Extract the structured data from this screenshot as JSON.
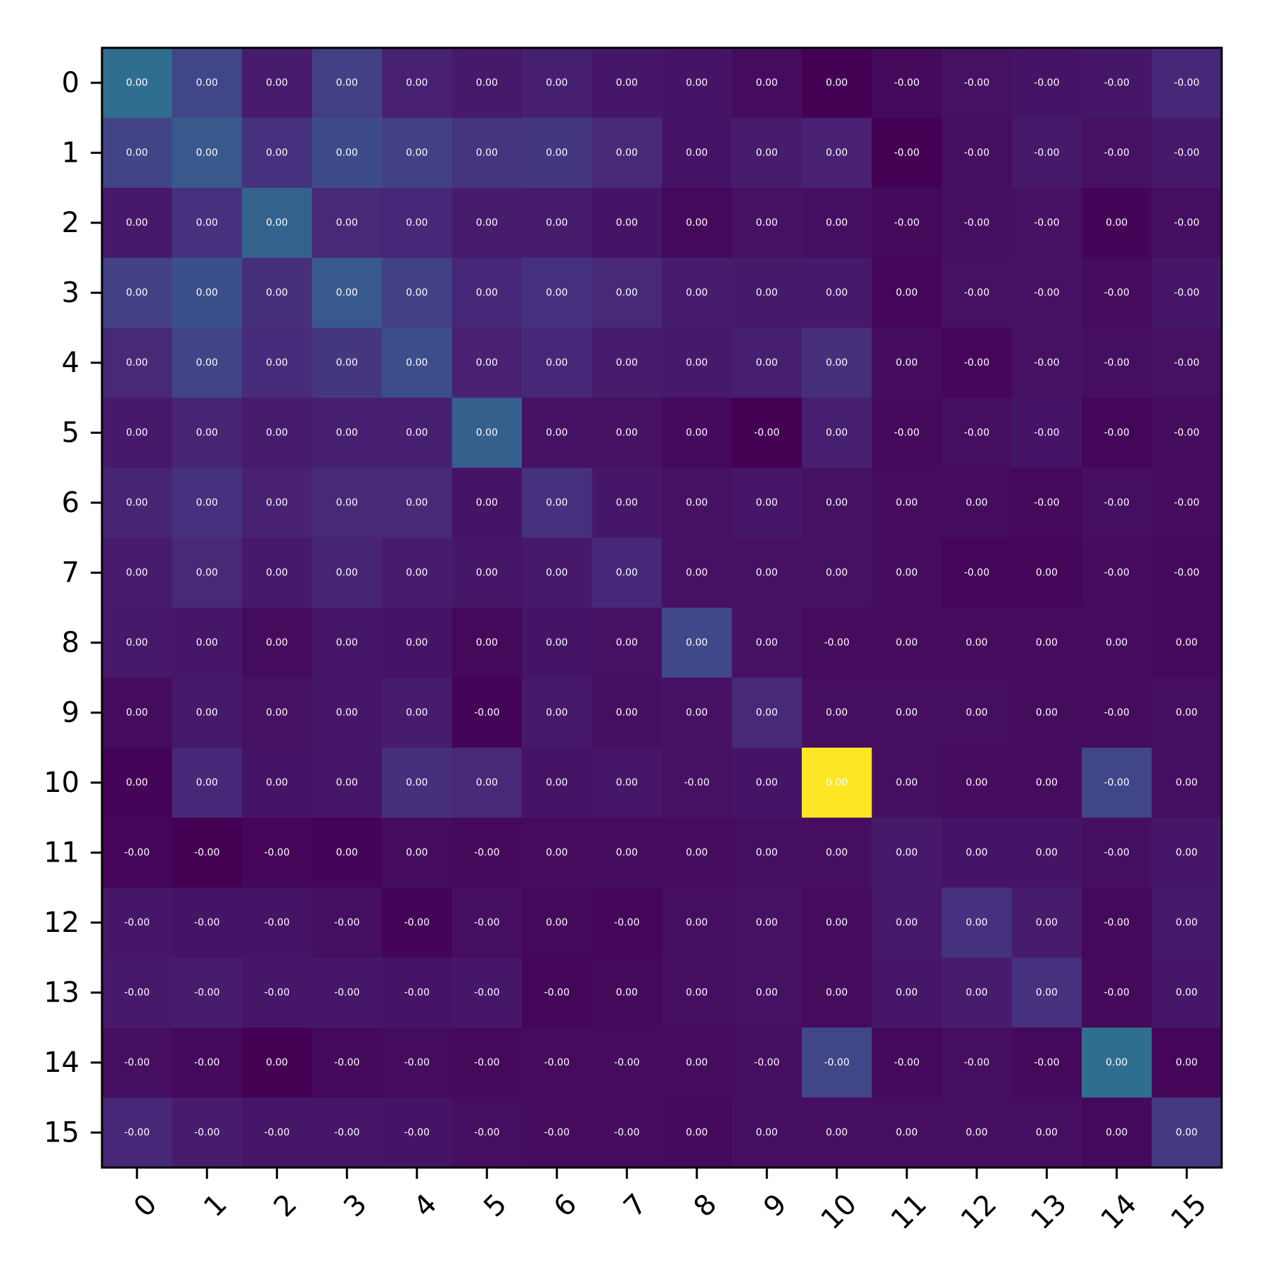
{
  "chart_data": {
    "type": "heatmap",
    "title": "",
    "xlabel": "",
    "ylabel": "",
    "x_ticks": [
      "0",
      "1",
      "2",
      "3",
      "4",
      "5",
      "6",
      "7",
      "8",
      "9",
      "10",
      "11",
      "12",
      "13",
      "14",
      "15"
    ],
    "y_ticks": [
      "0",
      "1",
      "2",
      "3",
      "4",
      "5",
      "6",
      "7",
      "8",
      "9",
      "10",
      "11",
      "12",
      "13",
      "14",
      "15"
    ],
    "x_tick_rotation": "45deg",
    "colormap": "viridis",
    "colorbar": false,
    "grid": false,
    "intensity_note": "relative color intensity 0..1 (viridis)",
    "intensity": [
      [
        0.45,
        0.26,
        0.1,
        0.23,
        0.12,
        0.09,
        0.11,
        0.08,
        0.07,
        0.04,
        0.0,
        0.03,
        0.06,
        0.07,
        0.08,
        0.14
      ],
      [
        0.25,
        0.35,
        0.18,
        0.29,
        0.24,
        0.19,
        0.2,
        0.15,
        0.07,
        0.1,
        0.12,
        0.0,
        0.05,
        0.09,
        0.06,
        0.09
      ],
      [
        0.09,
        0.18,
        0.4,
        0.15,
        0.14,
        0.1,
        0.1,
        0.07,
        0.03,
        0.06,
        0.05,
        0.03,
        0.05,
        0.06,
        0.01,
        0.05
      ],
      [
        0.24,
        0.31,
        0.17,
        0.35,
        0.24,
        0.14,
        0.18,
        0.15,
        0.1,
        0.09,
        0.09,
        0.02,
        0.06,
        0.06,
        0.04,
        0.08
      ],
      [
        0.15,
        0.25,
        0.16,
        0.2,
        0.3,
        0.12,
        0.14,
        0.1,
        0.09,
        0.11,
        0.17,
        0.04,
        0.02,
        0.06,
        0.05,
        0.06
      ],
      [
        0.09,
        0.13,
        0.1,
        0.11,
        0.11,
        0.38,
        0.06,
        0.06,
        0.03,
        0.0,
        0.11,
        0.03,
        0.05,
        0.07,
        0.02,
        0.04
      ],
      [
        0.13,
        0.18,
        0.12,
        0.15,
        0.15,
        0.07,
        0.18,
        0.08,
        0.06,
        0.08,
        0.06,
        0.04,
        0.04,
        0.03,
        0.05,
        0.04
      ],
      [
        0.1,
        0.15,
        0.09,
        0.13,
        0.1,
        0.08,
        0.09,
        0.14,
        0.06,
        0.06,
        0.06,
        0.04,
        0.02,
        0.02,
        0.04,
        0.03
      ],
      [
        0.09,
        0.08,
        0.04,
        0.08,
        0.07,
        0.03,
        0.07,
        0.06,
        0.27,
        0.06,
        0.04,
        0.04,
        0.04,
        0.04,
        0.04,
        0.03
      ],
      [
        0.04,
        0.09,
        0.06,
        0.08,
        0.1,
        0.01,
        0.09,
        0.05,
        0.06,
        0.15,
        0.05,
        0.05,
        0.05,
        0.04,
        0.04,
        0.05
      ],
      [
        0.01,
        0.14,
        0.07,
        0.08,
        0.17,
        0.15,
        0.07,
        0.08,
        0.06,
        0.07,
        1.0,
        0.05,
        0.04,
        0.04,
        0.26,
        0.05
      ],
      [
        0.02,
        0.0,
        0.02,
        0.01,
        0.04,
        0.03,
        0.04,
        0.04,
        0.04,
        0.05,
        0.05,
        0.09,
        0.07,
        0.07,
        0.05,
        0.08
      ],
      [
        0.08,
        0.07,
        0.07,
        0.05,
        0.01,
        0.05,
        0.03,
        0.02,
        0.05,
        0.06,
        0.04,
        0.09,
        0.18,
        0.1,
        0.03,
        0.09
      ],
      [
        0.09,
        0.1,
        0.08,
        0.08,
        0.07,
        0.08,
        0.02,
        0.03,
        0.05,
        0.06,
        0.04,
        0.08,
        0.1,
        0.18,
        0.03,
        0.08
      ],
      [
        0.05,
        0.03,
        0.0,
        0.03,
        0.04,
        0.03,
        0.04,
        0.04,
        0.04,
        0.05,
        0.26,
        0.03,
        0.05,
        0.03,
        0.45,
        0.02
      ],
      [
        0.14,
        0.1,
        0.08,
        0.08,
        0.07,
        0.05,
        0.04,
        0.04,
        0.03,
        0.05,
        0.05,
        0.05,
        0.05,
        0.05,
        0.03,
        0.21
      ]
    ],
    "cell_labels": [
      [
        "0.00",
        "0.00",
        "0.00",
        "0.00",
        "0.00",
        "0.00",
        "0.00",
        "0.00",
        "0.00",
        "0.00",
        "0.00",
        "-0.00",
        "-0.00",
        "-0.00",
        "-0.00",
        "-0.00"
      ],
      [
        "0.00",
        "0.00",
        "0.00",
        "0.00",
        "0.00",
        "0.00",
        "0.00",
        "0.00",
        "0.00",
        "0.00",
        "0.00",
        "-0.00",
        "-0.00",
        "-0.00",
        "-0.00",
        "-0.00"
      ],
      [
        "0.00",
        "0.00",
        "0.00",
        "0.00",
        "0.00",
        "0.00",
        "0.00",
        "0.00",
        "0.00",
        "0.00",
        "0.00",
        "-0.00",
        "-0.00",
        "-0.00",
        "0.00",
        "-0.00"
      ],
      [
        "0.00",
        "0.00",
        "0.00",
        "0.00",
        "0.00",
        "0.00",
        "0.00",
        "0.00",
        "0.00",
        "0.00",
        "0.00",
        "0.00",
        "-0.00",
        "-0.00",
        "-0.00",
        "-0.00"
      ],
      [
        "0.00",
        "0.00",
        "0.00",
        "0.00",
        "0.00",
        "0.00",
        "0.00",
        "0.00",
        "0.00",
        "0.00",
        "0.00",
        "0.00",
        "-0.00",
        "-0.00",
        "-0.00",
        "-0.00"
      ],
      [
        "0.00",
        "0.00",
        "0.00",
        "0.00",
        "0.00",
        "0.00",
        "0.00",
        "0.00",
        "0.00",
        "-0.00",
        "0.00",
        "-0.00",
        "-0.00",
        "-0.00",
        "-0.00",
        "-0.00"
      ],
      [
        "0.00",
        "0.00",
        "0.00",
        "0.00",
        "0.00",
        "0.00",
        "0.00",
        "0.00",
        "0.00",
        "0.00",
        "0.00",
        "0.00",
        "0.00",
        "-0.00",
        "-0.00",
        "-0.00"
      ],
      [
        "0.00",
        "0.00",
        "0.00",
        "0.00",
        "0.00",
        "0.00",
        "0.00",
        "0.00",
        "0.00",
        "0.00",
        "0.00",
        "0.00",
        "-0.00",
        "0.00",
        "-0.00",
        "-0.00"
      ],
      [
        "0.00",
        "0.00",
        "0.00",
        "0.00",
        "0.00",
        "0.00",
        "0.00",
        "0.00",
        "0.00",
        "0.00",
        "-0.00",
        "0.00",
        "0.00",
        "0.00",
        "0.00",
        "0.00"
      ],
      [
        "0.00",
        "0.00",
        "0.00",
        "0.00",
        "0.00",
        "-0.00",
        "0.00",
        "0.00",
        "0.00",
        "0.00",
        "0.00",
        "0.00",
        "0.00",
        "0.00",
        "-0.00",
        "0.00"
      ],
      [
        "0.00",
        "0.00",
        "0.00",
        "0.00",
        "0.00",
        "0.00",
        "0.00",
        "0.00",
        "-0.00",
        "0.00",
        "0.00",
        "0.00",
        "0.00",
        "0.00",
        "-0.00",
        "0.00"
      ],
      [
        "-0.00",
        "-0.00",
        "-0.00",
        "0.00",
        "0.00",
        "-0.00",
        "0.00",
        "0.00",
        "0.00",
        "0.00",
        "0.00",
        "0.00",
        "0.00",
        "0.00",
        "-0.00",
        "0.00"
      ],
      [
        "-0.00",
        "-0.00",
        "-0.00",
        "-0.00",
        "-0.00",
        "-0.00",
        "0.00",
        "-0.00",
        "0.00",
        "0.00",
        "0.00",
        "0.00",
        "0.00",
        "0.00",
        "-0.00",
        "0.00"
      ],
      [
        "-0.00",
        "-0.00",
        "-0.00",
        "-0.00",
        "-0.00",
        "-0.00",
        "-0.00",
        "0.00",
        "0.00",
        "0.00",
        "0.00",
        "0.00",
        "0.00",
        "0.00",
        "-0.00",
        "0.00"
      ],
      [
        "-0.00",
        "-0.00",
        "0.00",
        "-0.00",
        "-0.00",
        "-0.00",
        "-0.00",
        "-0.00",
        "0.00",
        "-0.00",
        "-0.00",
        "-0.00",
        "-0.00",
        "-0.00",
        "0.00",
        "0.00"
      ],
      [
        "-0.00",
        "-0.00",
        "-0.00",
        "-0.00",
        "-0.00",
        "-0.00",
        "-0.00",
        "-0.00",
        "0.00",
        "0.00",
        "0.00",
        "0.00",
        "0.00",
        "0.00",
        "0.00",
        "0.00"
      ]
    ]
  }
}
